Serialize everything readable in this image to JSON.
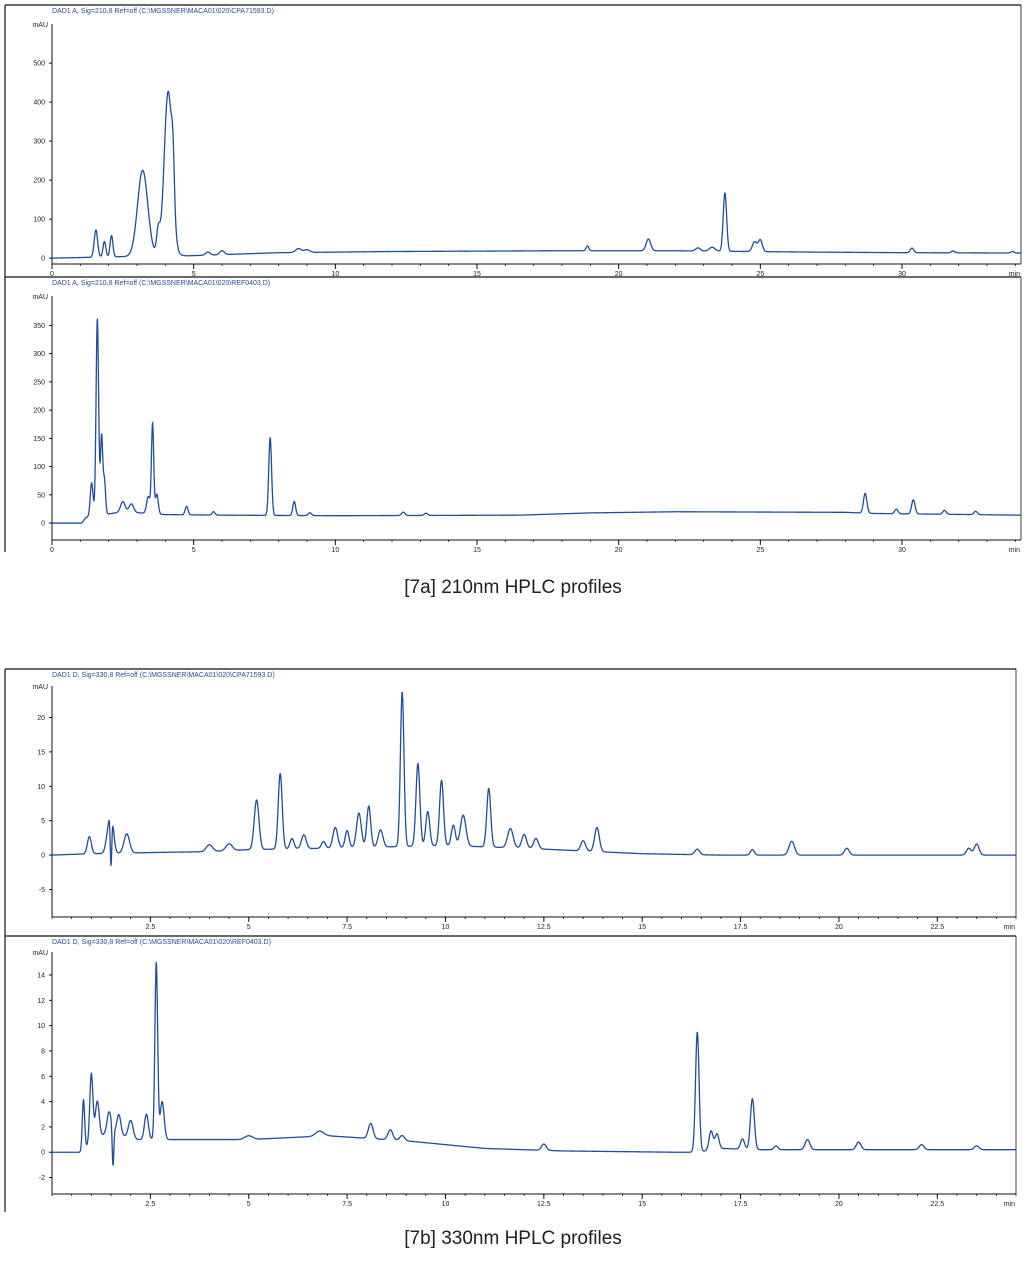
{
  "figures": [
    {
      "id": "fig7a",
      "caption": "[7a]  210nm HPLC profiles",
      "panels": [
        {
          "header": "DAD1 A, Sig=210,8 Ref=off (C:\\MGSSNER\\MACA01\\020\\CPA71593.D)",
          "yunit": "mAU",
          "xunit": "min",
          "xticks": [
            "0",
            "5",
            "10",
            "15",
            "20",
            "25",
            "30"
          ],
          "yticks": [
            "0",
            "100",
            "200",
            "300",
            "400",
            "500"
          ],
          "xlim": [
            0,
            34.2
          ],
          "ylim": [
            -15,
            590
          ]
        },
        {
          "header": "DAD1 A, Sig=210,8 Ref=off (C:\\MGSSNER\\MACA01\\020\\REF0403.D)",
          "yunit": "mAU",
          "xunit": "min",
          "xticks": [
            "0",
            "5",
            "10",
            "15",
            "20",
            "25",
            "30"
          ],
          "yticks": [
            "0",
            "50",
            "100",
            "150",
            "200",
            "250",
            "300",
            "350"
          ],
          "xlim": [
            0,
            34.2
          ],
          "ylim": [
            -30,
            395
          ]
        }
      ]
    },
    {
      "id": "fig7b",
      "caption": "[7b] 330nm HPLC profiles",
      "panels": [
        {
          "header": "DAD1 D, Sig=330,8 Ref=off (C:\\MGSSNER\\MACA01\\020\\CPA71593.D)",
          "yunit": "mAU",
          "xunit": "min",
          "xticks": [
            "2.5",
            "5",
            "7.5",
            "10",
            "12.5",
            "15",
            "17.5",
            "20",
            "22.5"
          ],
          "yticks": [
            "-5",
            "0",
            "5",
            "10",
            "15",
            "20"
          ],
          "xlim": [
            0,
            24.5
          ],
          "ylim": [
            -9,
            24
          ]
        },
        {
          "header": "DAD1 D, Sig=330,8 Ref=off (C:\\MGSSNER\\MACA01\\020\\REF0403.D)",
          "yunit": "mAU",
          "xunit": "min",
          "xticks": [
            "2.5",
            "5",
            "7.5",
            "10",
            "12.5",
            "15",
            "17.5",
            "20",
            "22.5"
          ],
          "yticks": [
            "-2",
            "0",
            "2",
            "4",
            "6",
            "8",
            "10",
            "12",
            "14"
          ],
          "xlim": [
            0,
            24.5
          ],
          "ylim": [
            -3.3,
            15.5
          ]
        }
      ]
    }
  ],
  "chart_data": [
    {
      "type": "line",
      "title": "",
      "xlabel": "min",
      "ylabel": "mAU",
      "xlim": [
        0,
        34.2
      ],
      "ylim": [
        -15,
        590
      ],
      "baseline_segments": [
        [
          0,
          0
        ],
        [
          1.3,
          2
        ],
        [
          3.2,
          5
        ],
        [
          4.3,
          8
        ],
        [
          4.8,
          6
        ],
        [
          6,
          9
        ],
        [
          8,
          14
        ],
        [
          12,
          17
        ],
        [
          18,
          19
        ],
        [
          22,
          19
        ],
        [
          26,
          16
        ],
        [
          30,
          14
        ],
        [
          34.2,
          13
        ]
      ],
      "peaks": [
        [
          1.55,
          70,
          0.06
        ],
        [
          1.85,
          40,
          0.05
        ],
        [
          2.1,
          55,
          0.05
        ],
        [
          3.2,
          220,
          0.18
        ],
        [
          3.75,
          60,
          0.06
        ],
        [
          4.1,
          420,
          0.14
        ],
        [
          4.27,
          110,
          0.05
        ],
        [
          5.5,
          8,
          0.08
        ],
        [
          6.0,
          10,
          0.08
        ],
        [
          8.7,
          10,
          0.1
        ],
        [
          9.0,
          7,
          0.1
        ],
        [
          18.9,
          12,
          0.05
        ],
        [
          21.05,
          30,
          0.08
        ],
        [
          22.8,
          8,
          0.08
        ],
        [
          23.3,
          10,
          0.1
        ],
        [
          23.75,
          150,
          0.06
        ],
        [
          24.8,
          25,
          0.08
        ],
        [
          25.0,
          30,
          0.07
        ],
        [
          30.35,
          12,
          0.06
        ],
        [
          31.8,
          5,
          0.06
        ],
        [
          33.9,
          4,
          0.06
        ]
      ]
    },
    {
      "type": "line",
      "title": "",
      "xlabel": "min",
      "ylabel": "mAU",
      "xlim": [
        0,
        34.2
      ],
      "ylim": [
        -30,
        395
      ],
      "baseline_segments": [
        [
          0,
          0
        ],
        [
          1.05,
          0
        ],
        [
          1.2,
          10
        ],
        [
          2.5,
          20
        ],
        [
          4.0,
          15
        ],
        [
          6,
          14
        ],
        [
          10,
          13
        ],
        [
          16.5,
          14
        ],
        [
          19,
          18
        ],
        [
          22,
          20
        ],
        [
          28,
          19
        ],
        [
          29,
          17
        ],
        [
          34.2,
          14
        ]
      ],
      "peaks": [
        [
          1.4,
          60,
          0.05
        ],
        [
          1.6,
          350,
          0.045
        ],
        [
          1.75,
          140,
          0.04
        ],
        [
          1.85,
          60,
          0.04
        ],
        [
          2.5,
          18,
          0.08
        ],
        [
          2.8,
          15,
          0.08
        ],
        [
          3.4,
          30,
          0.06
        ],
        [
          3.55,
          160,
          0.04
        ],
        [
          3.7,
          35,
          0.05
        ],
        [
          4.75,
          15,
          0.05
        ],
        [
          5.7,
          6,
          0.05
        ],
        [
          7.7,
          138,
          0.05
        ],
        [
          8.55,
          25,
          0.05
        ],
        [
          9.1,
          5,
          0.06
        ],
        [
          12.4,
          6,
          0.06
        ],
        [
          13.2,
          4,
          0.06
        ],
        [
          28.7,
          35,
          0.06
        ],
        [
          29.8,
          8,
          0.06
        ],
        [
          30.4,
          25,
          0.06
        ],
        [
          31.5,
          7,
          0.06
        ],
        [
          32.6,
          6,
          0.06
        ]
      ]
    },
    {
      "type": "line",
      "title": "",
      "xlabel": "min",
      "ylabel": "mAU",
      "xlim": [
        0,
        24.5
      ],
      "ylim": [
        -9,
        24
      ],
      "baseline_segments": [
        [
          0,
          0
        ],
        [
          1.0,
          0.2
        ],
        [
          2.8,
          0.4
        ],
        [
          4.0,
          0.5
        ],
        [
          5.0,
          0.8
        ],
        [
          7.0,
          1.0
        ],
        [
          10.0,
          1.4
        ],
        [
          12.0,
          1.0
        ],
        [
          13.5,
          0.6
        ],
        [
          15.0,
          0.2
        ],
        [
          17.0,
          0
        ],
        [
          24.5,
          0
        ]
      ],
      "peaks": [
        [
          0.95,
          2.5,
          0.05
        ],
        [
          1.4,
          1.5,
          0.05
        ],
        [
          1.5,
          -8,
          0.02
        ],
        [
          1.5,
          6,
          0.06
        ],
        [
          1.9,
          2.8,
          0.07
        ],
        [
          4.0,
          1.0,
          0.08
        ],
        [
          4.5,
          1.0,
          0.08
        ],
        [
          5.2,
          7.2,
          0.06
        ],
        [
          5.8,
          11,
          0.05
        ],
        [
          6.1,
          1.5,
          0.05
        ],
        [
          6.4,
          2,
          0.06
        ],
        [
          6.9,
          1,
          0.05
        ],
        [
          7.2,
          3,
          0.06
        ],
        [
          7.5,
          2.5,
          0.05
        ],
        [
          7.8,
          5,
          0.06
        ],
        [
          8.05,
          6,
          0.05
        ],
        [
          8.35,
          2.5,
          0.06
        ],
        [
          8.9,
          22.5,
          0.045
        ],
        [
          9.3,
          12,
          0.05
        ],
        [
          9.55,
          5,
          0.05
        ],
        [
          9.9,
          9.5,
          0.05
        ],
        [
          10.2,
          3,
          0.05
        ],
        [
          10.45,
          4.5,
          0.07
        ],
        [
          11.1,
          8.5,
          0.05
        ],
        [
          11.65,
          2.8,
          0.07
        ],
        [
          12.0,
          2,
          0.06
        ],
        [
          12.3,
          1.5,
          0.06
        ],
        [
          13.5,
          1.5,
          0.06
        ],
        [
          13.85,
          3.5,
          0.06
        ],
        [
          16.4,
          0.8,
          0.06
        ],
        [
          17.8,
          0.8,
          0.05
        ],
        [
          18.8,
          2.0,
          0.07
        ],
        [
          20.2,
          1.0,
          0.06
        ],
        [
          23.3,
          1.0,
          0.06
        ],
        [
          23.5,
          1.6,
          0.06
        ]
      ]
    },
    {
      "type": "line",
      "title": "",
      "xlabel": "min",
      "ylabel": "mAU",
      "xlim": [
        0,
        24.5
      ],
      "ylim": [
        -3.3,
        15.5
      ],
      "baseline_segments": [
        [
          0,
          0
        ],
        [
          0.75,
          0
        ],
        [
          0.9,
          0.5
        ],
        [
          1.5,
          1.8
        ],
        [
          2.0,
          1.0
        ],
        [
          2.8,
          1.0
        ],
        [
          3.5,
          1.0
        ],
        [
          5,
          1.0
        ],
        [
          7,
          1.3
        ],
        [
          9,
          0.9
        ],
        [
          11,
          0.3
        ],
        [
          13,
          0.1
        ],
        [
          15.8,
          0
        ],
        [
          16.4,
          0
        ],
        [
          17.0,
          0.3
        ],
        [
          18,
          0.2
        ],
        [
          20,
          0.2
        ],
        [
          24.5,
          0.2
        ]
      ],
      "peaks": [
        [
          0.8,
          4,
          0.03
        ],
        [
          1.0,
          5.5,
          0.04
        ],
        [
          1.15,
          3,
          0.05
        ],
        [
          1.45,
          1.5,
          0.05
        ],
        [
          1.55,
          -3.0,
          0.02
        ],
        [
          1.7,
          1.5,
          0.05
        ],
        [
          2.0,
          1.5,
          0.06
        ],
        [
          2.4,
          2,
          0.05
        ],
        [
          2.65,
          14,
          0.035
        ],
        [
          2.8,
          3,
          0.05
        ],
        [
          5.0,
          0.3,
          0.1
        ],
        [
          6.8,
          0.4,
          0.1
        ],
        [
          8.1,
          1.2,
          0.06
        ],
        [
          8.6,
          0.8,
          0.06
        ],
        [
          8.9,
          0.4,
          0.06
        ],
        [
          12.5,
          0.5,
          0.06
        ],
        [
          16.4,
          9.5,
          0.045
        ],
        [
          16.75,
          1.5,
          0.05
        ],
        [
          16.9,
          1.2,
          0.05
        ],
        [
          17.55,
          0.8,
          0.05
        ],
        [
          17.8,
          4.0,
          0.05
        ],
        [
          18.4,
          0.3,
          0.05
        ],
        [
          19.2,
          0.8,
          0.06
        ],
        [
          20.5,
          0.6,
          0.06
        ],
        [
          22.1,
          0.4,
          0.06
        ],
        [
          23.5,
          0.3,
          0.06
        ]
      ]
    }
  ]
}
